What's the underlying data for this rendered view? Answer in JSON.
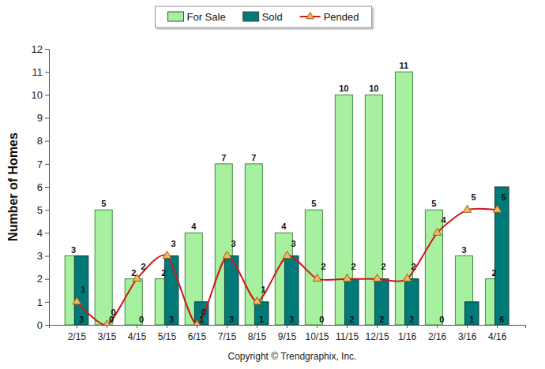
{
  "chart_data": {
    "type": "bar",
    "categories": [
      "2/15",
      "3/15",
      "4/15",
      "5/15",
      "6/15",
      "7/15",
      "8/15",
      "9/15",
      "10/15",
      "11/15",
      "12/15",
      "1/16",
      "2/16",
      "3/16",
      "4/16"
    ],
    "series": [
      {
        "name": "For Sale",
        "type": "bar",
        "color": "#a6f0a0",
        "values": [
          3,
          5,
          2,
          2,
          4,
          7,
          7,
          4,
          5,
          10,
          10,
          11,
          5,
          3,
          2
        ]
      },
      {
        "name": "Sold",
        "type": "bar",
        "color": "#007a78",
        "values": [
          3,
          0,
          0,
          3,
          1,
          3,
          1,
          3,
          0,
          2,
          2,
          2,
          0,
          1,
          6
        ]
      },
      {
        "name": "Pended",
        "type": "line",
        "color": "#d01818",
        "marker": "triangle",
        "line_style": "smooth",
        "values": [
          1,
          0,
          2,
          3,
          0,
          3,
          1,
          3,
          2,
          2,
          2,
          2,
          4,
          5,
          5
        ]
      }
    ],
    "y_label": "Number of Homes",
    "ylim": [
      0,
      12
    ],
    "yticks": [
      0,
      1,
      2,
      3,
      4,
      5,
      6,
      7,
      8,
      9,
      10,
      11,
      12
    ],
    "grid": false,
    "legend": "top",
    "data_labels": true,
    "annotations": [
      "Copyright © Trendgraphix, Inc."
    ]
  }
}
